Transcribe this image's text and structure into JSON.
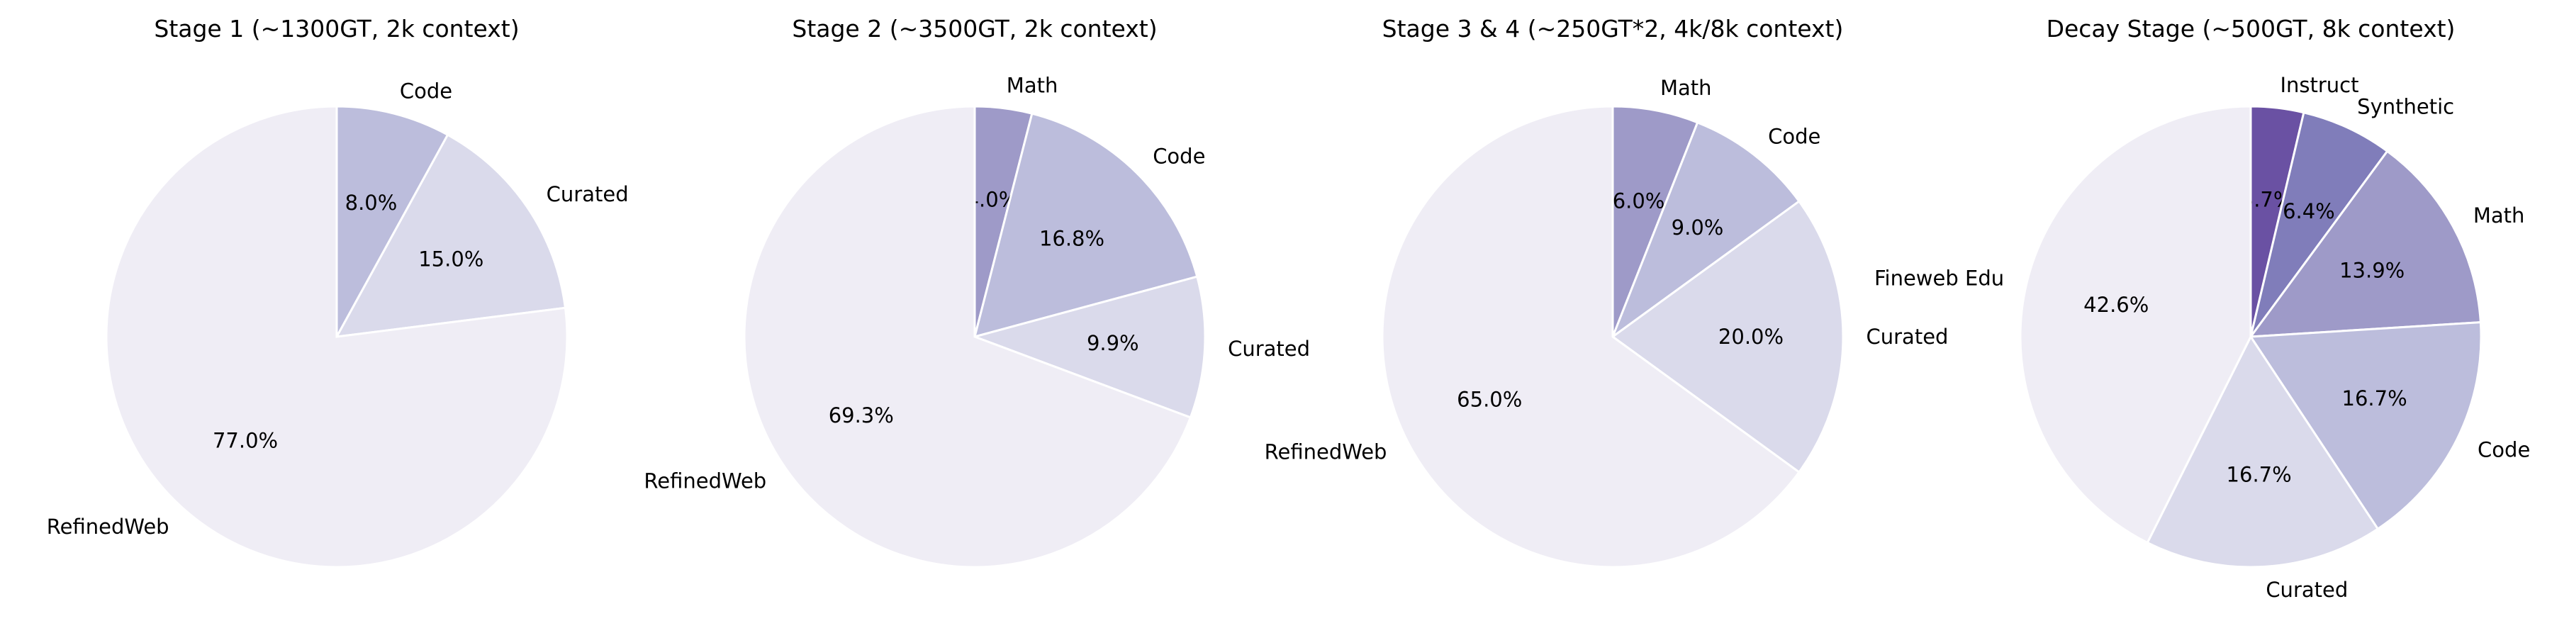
{
  "chart_data": [
    {
      "type": "pie",
      "title": "Stage 1 (~1300GT, 2k context)",
      "slices": [
        {
          "label": "Code",
          "value": 8.0,
          "pct_label": "8.0%",
          "color": "#bcbddc"
        },
        {
          "label": "Curated",
          "value": 15.0,
          "pct_label": "15.0%",
          "color": "#dadaeb"
        },
        {
          "label": "RefinedWeb",
          "value": 77.0,
          "pct_label": "77.0%",
          "color": "#efedf5"
        }
      ]
    },
    {
      "type": "pie",
      "title": "Stage 2 (~3500GT, 2k context)",
      "slices": [
        {
          "label": "Math",
          "value": 4.0,
          "pct_label": "4.0%",
          "color": "#9e9ac8"
        },
        {
          "label": "Code",
          "value": 16.8,
          "pct_label": "16.8%",
          "color": "#bcbddc"
        },
        {
          "label": "Curated",
          "value": 9.9,
          "pct_label": "9.9%",
          "color": "#dadaeb"
        },
        {
          "label": "RefinedWeb",
          "value": 69.3,
          "pct_label": "69.3%",
          "color": "#efedf5"
        }
      ]
    },
    {
      "type": "pie",
      "title": "Stage 3 & 4 (~250GT*2, 4k/8k context)",
      "slices": [
        {
          "label": "Math",
          "value": 6.0,
          "pct_label": "6.0%",
          "color": "#9e9ac8"
        },
        {
          "label": "Code",
          "value": 9.0,
          "pct_label": "9.0%",
          "color": "#bcbddc"
        },
        {
          "label": "Curated",
          "value": 20.0,
          "pct_label": "20.0%",
          "color": "#dadaeb"
        },
        {
          "label": "RefinedWeb",
          "value": 65.0,
          "pct_label": "65.0%",
          "color": "#efedf5"
        }
      ]
    },
    {
      "type": "pie",
      "title": "Decay Stage (~500GT, 8k context)",
      "slices": [
        {
          "label": "Instruct",
          "value": 3.7,
          "pct_label": "3.7%",
          "color": "#6a51a3"
        },
        {
          "label": "Synthetic",
          "value": 6.4,
          "pct_label": "6.4%",
          "color": "#807dba"
        },
        {
          "label": "Math",
          "value": 13.9,
          "pct_label": "13.9%",
          "color": "#9e9ac8"
        },
        {
          "label": "Code",
          "value": 16.7,
          "pct_label": "16.7%",
          "color": "#bcbddc"
        },
        {
          "label": "Curated",
          "value": 16.7,
          "pct_label": "16.7%",
          "color": "#dadaeb"
        },
        {
          "label": "Fineweb Edu",
          "value": 42.6,
          "pct_label": "42.6%",
          "color": "#efedf5"
        }
      ]
    }
  ]
}
